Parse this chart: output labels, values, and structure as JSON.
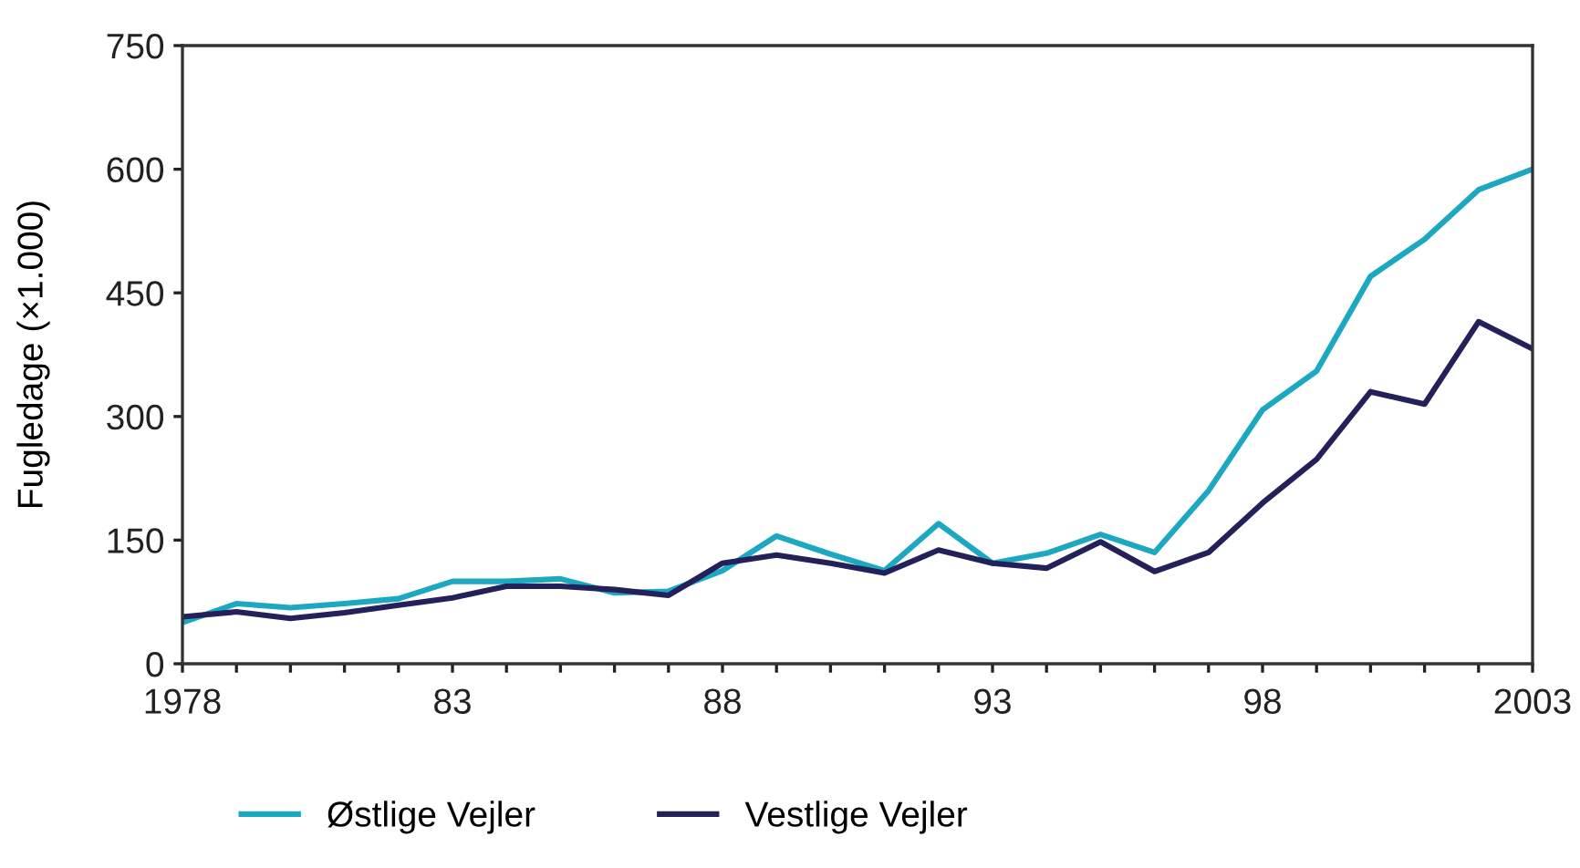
{
  "chart_data": {
    "type": "line",
    "ylabel": "Fugledage (×1.000)",
    "x": [
      1978,
      1979,
      1980,
      1981,
      1982,
      1983,
      1984,
      1985,
      1986,
      1987,
      1988,
      1989,
      1990,
      1991,
      1992,
      1993,
      1994,
      1995,
      1996,
      1997,
      1998,
      1999,
      2000,
      2001,
      2002,
      2003
    ],
    "series": [
      {
        "name": "Østlige Vejler",
        "color": "#1ba8c0",
        "values": [
          50,
          73,
          68,
          73,
          79,
          100,
          100,
          103,
          86,
          88,
          113,
          155,
          133,
          113,
          170,
          122,
          134,
          157,
          135,
          210,
          308,
          355,
          470,
          515,
          575,
          600
        ]
      },
      {
        "name": "Vestlige Vejler",
        "color": "#24205a",
        "values": [
          57,
          63,
          55,
          62,
          71,
          80,
          94,
          94,
          90,
          83,
          122,
          132,
          122,
          110,
          138,
          122,
          116,
          148,
          112,
          135,
          195,
          248,
          330,
          315,
          415,
          382
        ]
      }
    ],
    "xlim": [
      1978,
      2003
    ],
    "xticks": [
      1978,
      {
        "value": 1979,
        "label": null
      },
      {
        "value": 1980,
        "label": null
      },
      {
        "value": 1981,
        "label": null
      },
      {
        "value": 1982,
        "label": null
      },
      {
        "value": 1983,
        "label": "83"
      },
      {
        "value": 1984,
        "label": null
      },
      {
        "value": 1985,
        "label": null
      },
      {
        "value": 1986,
        "label": null
      },
      {
        "value": 1987,
        "label": null
      },
      {
        "value": 1988,
        "label": "88"
      },
      {
        "value": 1989,
        "label": null
      },
      {
        "value": 1990,
        "label": null
      },
      {
        "value": 1991,
        "label": null
      },
      {
        "value": 1992,
        "label": null
      },
      {
        "value": 1993,
        "label": "93"
      },
      {
        "value": 1994,
        "label": null
      },
      {
        "value": 1995,
        "label": null
      },
      {
        "value": 1996,
        "label": null
      },
      {
        "value": 1997,
        "label": null
      },
      {
        "value": 1998,
        "label": "98"
      },
      {
        "value": 1999,
        "label": null
      },
      {
        "value": 2000,
        "label": null
      },
      {
        "value": 2001,
        "label": null
      },
      {
        "value": 2002,
        "label": null
      },
      2003
    ],
    "ylim": [
      0,
      750
    ],
    "yticks": [
      0,
      150,
      300,
      450,
      600,
      750
    ],
    "grid": false,
    "legend": "bottom left",
    "marker": "none",
    "line_style": "solid"
  }
}
